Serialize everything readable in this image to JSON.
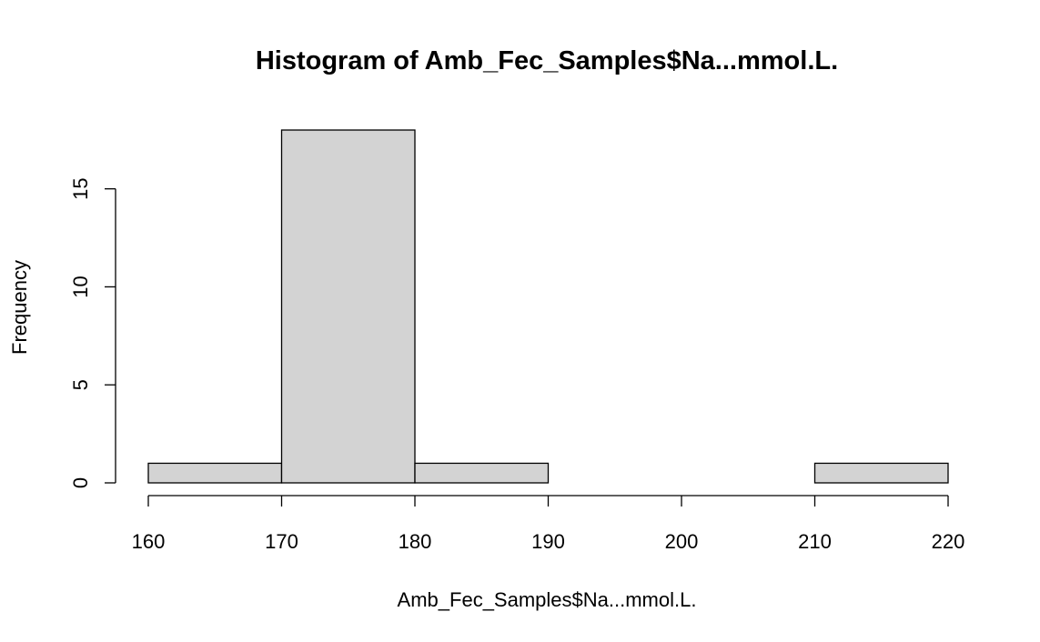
{
  "chart_data": {
    "type": "bar",
    "title": "Histogram of Amb_Fec_Samples$Na...mmol.L.",
    "xlabel": "Amb_Fec_Samples$Na...mmol.L.",
    "ylabel": "Frequency",
    "bins": [
      {
        "from": 160,
        "to": 170,
        "count": 1
      },
      {
        "from": 170,
        "to": 180,
        "count": 18
      },
      {
        "from": 180,
        "to": 190,
        "count": 1
      },
      {
        "from": 190,
        "to": 200,
        "count": 0
      },
      {
        "from": 200,
        "to": 210,
        "count": 0
      },
      {
        "from": 210,
        "to": 220,
        "count": 1
      }
    ],
    "xlim": [
      160,
      220
    ],
    "ylim": [
      0,
      18
    ],
    "x_ticks": [
      160,
      170,
      180,
      190,
      200,
      210,
      220
    ],
    "y_ticks": [
      0,
      5,
      10,
      15
    ],
    "bar_color": "#d3d3d3",
    "grid": false,
    "legend": "none"
  }
}
